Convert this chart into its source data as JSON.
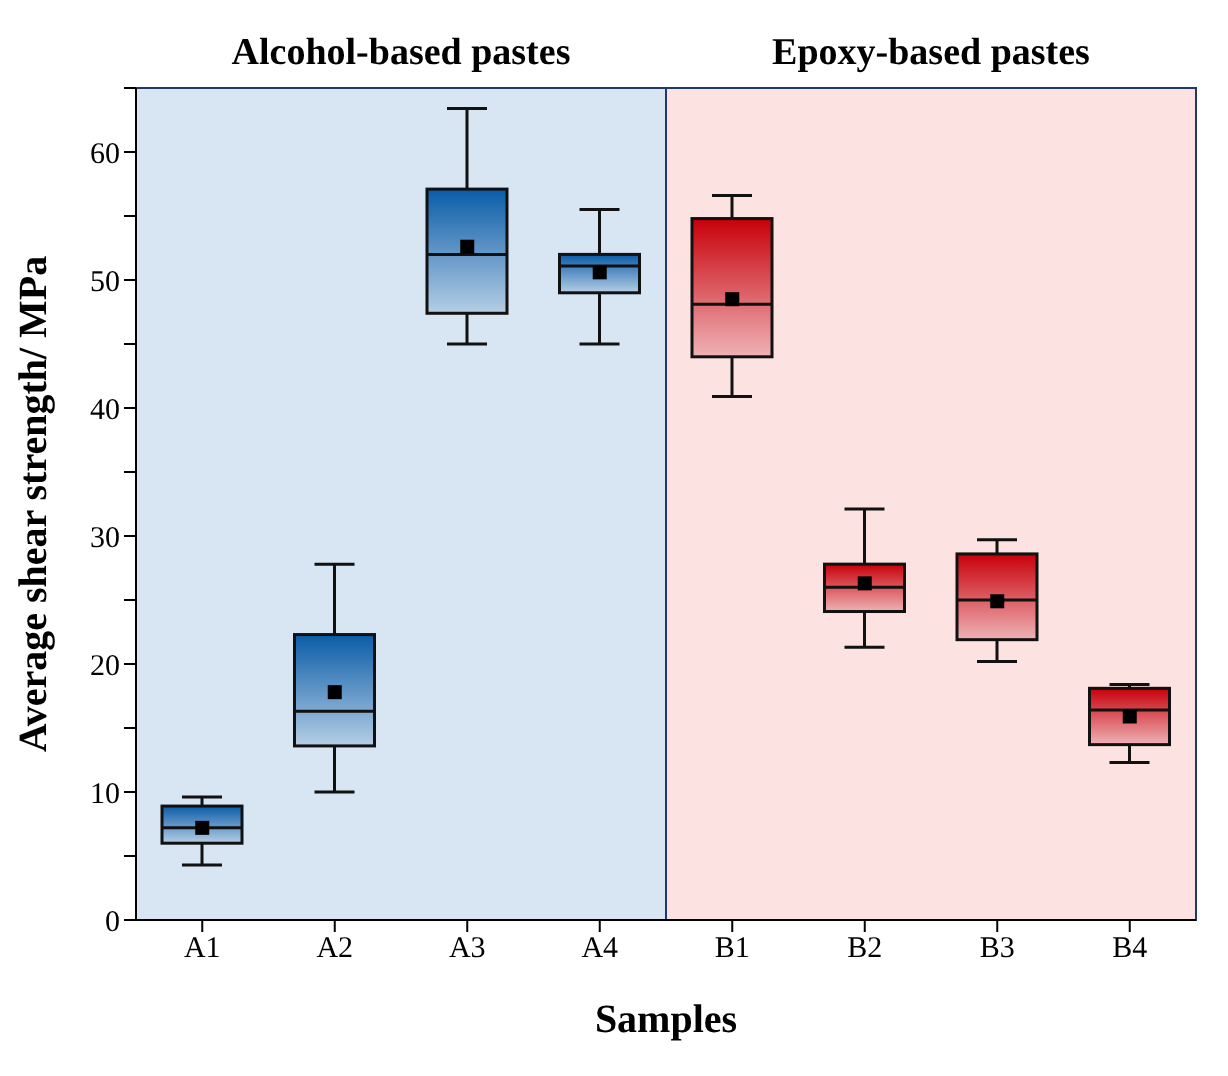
{
  "chart_data": {
    "type": "box",
    "xlabel": "Samples",
    "ylabel": "Average shear strength/ MPa",
    "categories": [
      "A1",
      "A2",
      "A3",
      "A4",
      "B1",
      "B2",
      "B3",
      "B4"
    ],
    "boxes": [
      {
        "low": 4.3,
        "q1": 6.0,
        "median": 7.2,
        "q3": 8.9,
        "high": 9.6,
        "mean": 7.2
      },
      {
        "low": 10.0,
        "q1": 13.6,
        "median": 16.3,
        "q3": 22.3,
        "high": 27.8,
        "mean": 17.8
      },
      {
        "low": 45.0,
        "q1": 47.4,
        "median": 52.0,
        "q3": 57.1,
        "high": 63.4,
        "mean": 52.6
      },
      {
        "low": 45.0,
        "q1": 49.0,
        "median": 51.1,
        "q3": 52.0,
        "high": 55.5,
        "mean": 50.6
      },
      {
        "low": 40.9,
        "q1": 44.0,
        "median": 48.1,
        "q3": 54.8,
        "high": 56.6,
        "mean": 48.5
      },
      {
        "low": 21.3,
        "q1": 24.1,
        "median": 26.0,
        "q3": 27.8,
        "high": 32.1,
        "mean": 26.3
      },
      {
        "low": 20.2,
        "q1": 21.9,
        "median": 25.0,
        "q3": 28.6,
        "high": 29.7,
        "mean": 24.9
      },
      {
        "low": 12.3,
        "q1": 13.7,
        "median": 16.4,
        "q3": 18.1,
        "high": 18.4,
        "mean": 15.9
      }
    ],
    "colors": [
      "#0a5ca8",
      "#0a5ca8",
      "#0a5ca8",
      "#0a5ca8",
      "#c8000a",
      "#c8000a",
      "#c8000a",
      "#c8000a"
    ],
    "ylim": [
      0,
      65
    ],
    "yticks": [
      0,
      {
        "value": 5,
        "label": null
      },
      10,
      {
        "value": 15,
        "label": null
      },
      20,
      {
        "value": 25,
        "label": null
      },
      30,
      {
        "value": 35,
        "label": null
      },
      40,
      {
        "value": 45,
        "label": null
      },
      50,
      {
        "value": 55,
        "label": null
      },
      60,
      {
        "value": 65,
        "label": null
      }
    ],
    "bands": [
      {
        "axis": "x",
        "from": "A1",
        "to": "A4",
        "label": "Alcohol-based pastes",
        "color": "#c8dcf0"
      },
      {
        "axis": "x",
        "from": "B1",
        "to": "B4",
        "label": "Epoxy-based pastes",
        "color": "#fcd6d6"
      }
    ],
    "marker": "square",
    "grid": false,
    "legend": false
  }
}
